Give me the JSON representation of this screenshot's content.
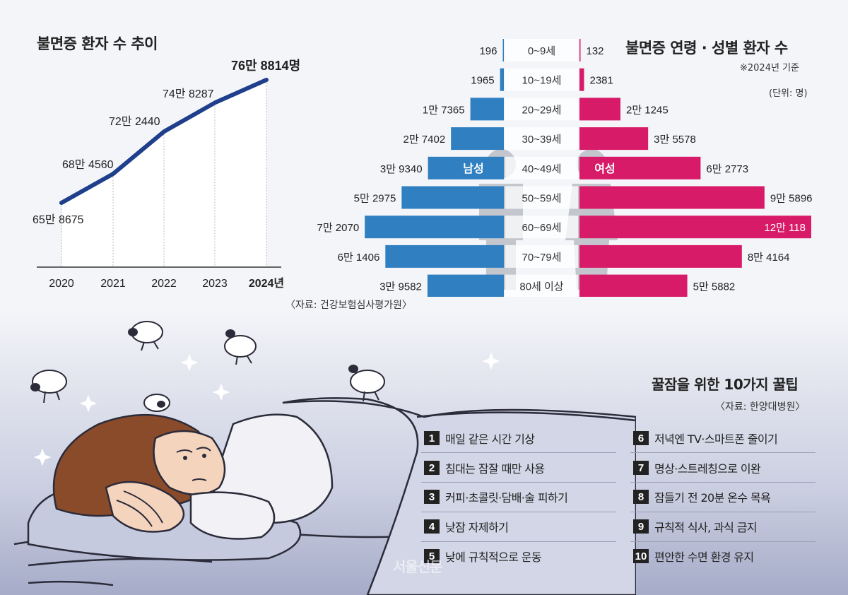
{
  "line_section": {
    "title": "불면증 환자 수 추이",
    "source": "〈자료: 건강보험심사평가원〉"
  },
  "pyramid_section": {
    "title": "불면증 연령 · 성별 환자 수",
    "note": "※2024년 기준",
    "unit": "(단위: 명)",
    "male_label": "남성",
    "female_label": "여성"
  },
  "chart_data": [
    {
      "type": "line",
      "title": "불면증 환자 수 추이",
      "x": [
        "2020",
        "2021",
        "2022",
        "2023",
        "2024년"
      ],
      "values": [
        658675,
        684560,
        722440,
        748287,
        768814
      ],
      "value_labels": [
        "65만 8675",
        "68만 4560",
        "72만 2440",
        "74만 8287",
        "76만 8814명"
      ],
      "color": "#1f3f8c",
      "grid": false
    },
    {
      "type": "bar",
      "subtype": "population-pyramid",
      "title": "불면증 연령 · 성별 환자 수",
      "categories": [
        "0~9세",
        "10~19세",
        "20~29세",
        "30~39세",
        "40~49세",
        "50~59세",
        "60~69세",
        "70~79세",
        "80세 이상"
      ],
      "series": [
        {
          "name": "남성",
          "color": "#2f7fc1",
          "values": [
            196,
            1965,
            17365,
            27402,
            39340,
            52975,
            72070,
            61406,
            39582
          ],
          "labels": [
            "196",
            "1965",
            "1만 7365",
            "2만 7402",
            "3만 9340",
            "5만 2975",
            "7만 2070",
            "6만 1406",
            "3만 9582"
          ]
        },
        {
          "name": "여성",
          "color": "#d81b68",
          "values": [
            132,
            2381,
            21245,
            35578,
            62773,
            95896,
            120118,
            84164,
            55882
          ],
          "labels": [
            "132",
            "2381",
            "2만 1245",
            "3만 5578",
            "6만 2773",
            "9만 5896",
            "12만 118",
            "8만 4164",
            "5만 5882"
          ]
        }
      ]
    }
  ],
  "tips": {
    "title": "꿀잠을 위한 10가지 꿀팁",
    "source": "〈자료: 한양대병원〉",
    "items": [
      {
        "num": "1",
        "text": "매일 같은 시간 기상"
      },
      {
        "num": "2",
        "text": "침대는 잠잘 때만 사용"
      },
      {
        "num": "3",
        "text": "커피·초콜릿·담배·술 피하기"
      },
      {
        "num": "4",
        "text": "낮잠 자제하기"
      },
      {
        "num": "5",
        "text": "낮에 규칙적으로 운동"
      },
      {
        "num": "6",
        "text": "저녁엔 TV·스마트폰 줄이기"
      },
      {
        "num": "7",
        "text": "명상·스트레칭으로 이완"
      },
      {
        "num": "8",
        "text": "잠들기 전 20분 온수 목욕"
      },
      {
        "num": "9",
        "text": "규칙적 식사, 과식 금지"
      },
      {
        "num": "10",
        "text": "편안한 수면 환경 유지"
      }
    ]
  },
  "watermark": "서울신문"
}
